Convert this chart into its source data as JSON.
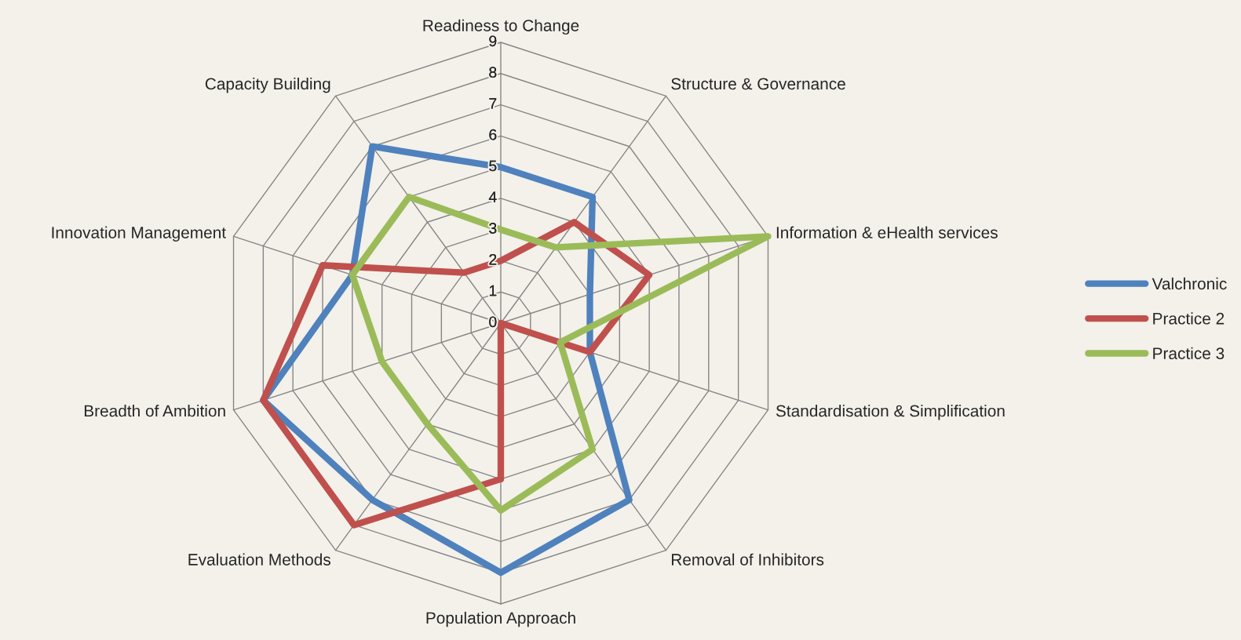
{
  "chart_data": {
    "type": "radar",
    "categories": [
      "Readiness to Change",
      "Structure & Governance",
      "Information & eHealth services",
      "Standardisation & Simplification",
      "Removal of Inhibitors",
      "Population Approach",
      "Evaluation Methods",
      "Breadth of Ambition",
      "Innovation Management",
      "Capacity Building"
    ],
    "series": [
      {
        "name": "Valchronic",
        "color": "#4f81bd",
        "values": [
          5,
          5,
          3,
          3,
          7,
          8,
          7,
          8,
          5,
          7
        ]
      },
      {
        "name": "Practice 2",
        "color": "#c0504d",
        "values": [
          2,
          4,
          5,
          3,
          0,
          5,
          8,
          8,
          6,
          2
        ]
      },
      {
        "name": "Practice 3",
        "color": "#9bbb59",
        "values": [
          3,
          3,
          9,
          2,
          5,
          6,
          4,
          4,
          5,
          5
        ]
      }
    ],
    "ylim": [
      0,
      9
    ],
    "yticks": [
      0,
      1,
      2,
      3,
      4,
      5,
      6,
      7,
      8,
      9
    ],
    "grid": true,
    "legend": "right",
    "marker": "none",
    "line_style": "solid"
  }
}
